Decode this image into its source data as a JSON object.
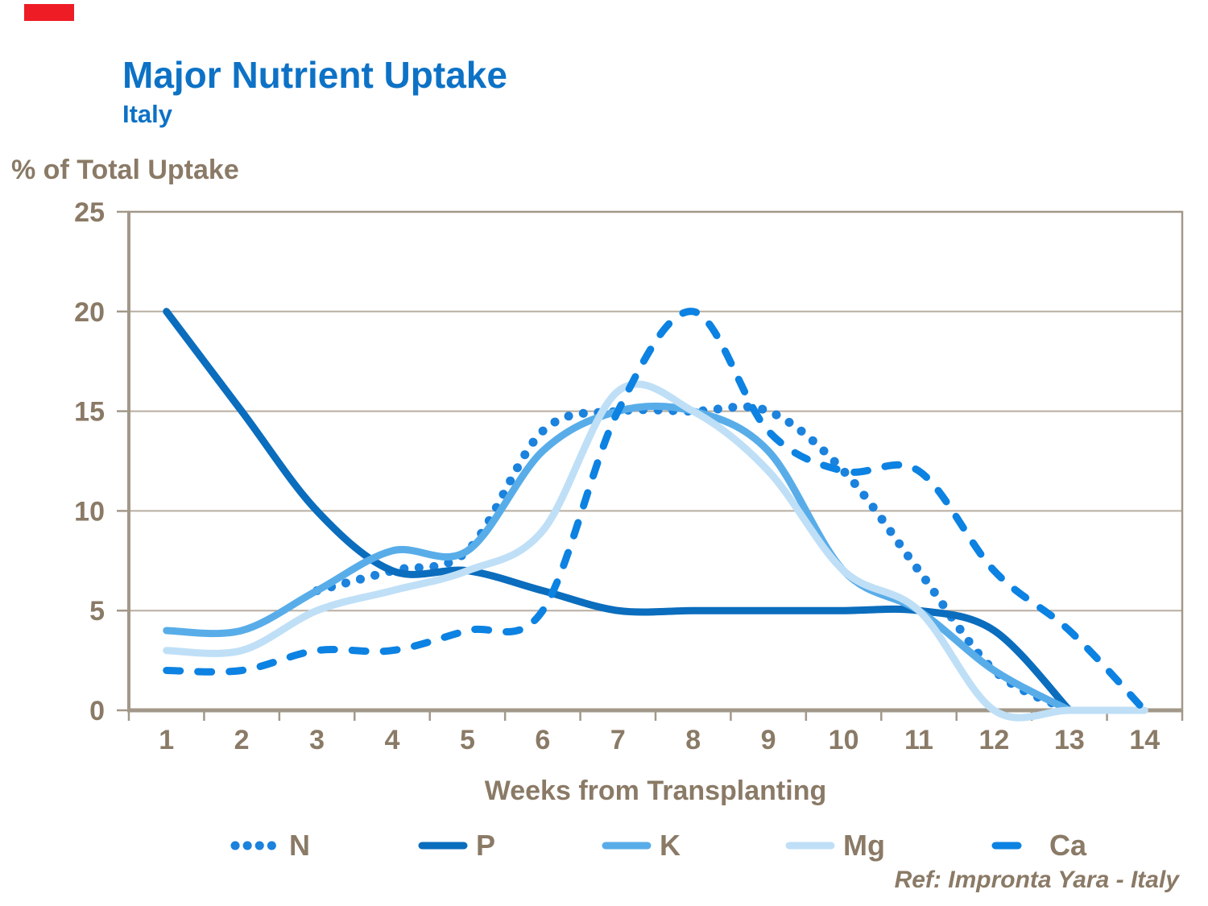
{
  "chart_data": {
    "type": "line",
    "title": "Major Nutrient Uptake",
    "subtitle": "Italy",
    "xlabel": "Weeks from Transplanting",
    "ylabel": "% of Total Uptake",
    "x": [
      1,
      2,
      3,
      4,
      5,
      6,
      7,
      8,
      9,
      10,
      11,
      12,
      13,
      14
    ],
    "ylim": [
      0,
      25
    ],
    "yticks": [
      0,
      5,
      10,
      15,
      20,
      25
    ],
    "grid": true,
    "legend_position": "bottom",
    "series": [
      {
        "name": "N",
        "line_style": "dotted",
        "color": "#1b82dd",
        "x_start": 3,
        "values": [
          6,
          7,
          8,
          14,
          15,
          15,
          15,
          12,
          7,
          2,
          0
        ]
      },
      {
        "name": "P",
        "line_style": "solid",
        "color": "#0b6dbd",
        "x_start": 1,
        "values": [
          20,
          15,
          10,
          7,
          7,
          6,
          5,
          5,
          5,
          5,
          5,
          4,
          0
        ]
      },
      {
        "name": "K",
        "line_style": "solid",
        "color": "#58ade9",
        "x_start": 1,
        "values": [
          4,
          4,
          6,
          8,
          8,
          13,
          15,
          15,
          13,
          7,
          5,
          2,
          0
        ]
      },
      {
        "name": "Mg",
        "line_style": "solid",
        "color": "#bfdff7",
        "x_start": 1,
        "values": [
          3,
          3,
          5,
          6,
          7,
          9,
          16,
          15,
          12,
          7,
          5,
          0,
          0,
          0
        ]
      },
      {
        "name": "Ca",
        "line_style": "dashed",
        "color": "#0c82e2",
        "x_start": 1,
        "values": [
          2,
          2,
          3,
          3,
          4,
          5,
          15,
          20,
          14,
          12,
          12,
          7,
          4,
          0
        ]
      }
    ]
  },
  "ref_text": "Ref: Impronta Yara - Italy",
  "colors": {
    "title_blue": "#0d72c6",
    "text_tan": "#8a7a66",
    "gridline": "#b8aea1",
    "axis": "#a29889",
    "red_marker": "#ee1c25"
  }
}
